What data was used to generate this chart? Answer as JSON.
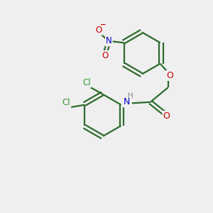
{
  "background_color": "#efefef",
  "bond_color": "#2d6b2d",
  "O_color": "#cc0000",
  "N_color": "#0000cc",
  "Cl_color": "#3a9a3a",
  "H_color": "#888888",
  "line_width": 1.6,
  "figsize": [
    3.0,
    3.0
  ],
  "dpi": 100,
  "xlim": [
    0,
    10
  ],
  "ylim": [
    0,
    10
  ]
}
